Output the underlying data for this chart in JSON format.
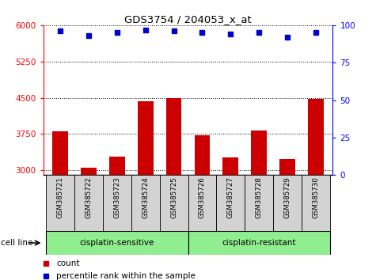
{
  "title": "GDS3754 / 204053_x_at",
  "samples": [
    "GSM385721",
    "GSM385722",
    "GSM385723",
    "GSM385724",
    "GSM385725",
    "GSM385726",
    "GSM385727",
    "GSM385728",
    "GSM385729",
    "GSM385730"
  ],
  "counts": [
    3800,
    3050,
    3280,
    4430,
    4500,
    3720,
    3260,
    3820,
    3230,
    4480
  ],
  "percentile_ranks": [
    96,
    93,
    95,
    97,
    96,
    95,
    94,
    95,
    92,
    95
  ],
  "bar_color": "#cc0000",
  "dot_color": "#0000cc",
  "ylim_left": [
    2900,
    6000
  ],
  "ylim_right": [
    0,
    100
  ],
  "yticks_left": [
    3000,
    3750,
    4500,
    5250,
    6000
  ],
  "yticks_right": [
    0,
    25,
    50,
    75,
    100
  ],
  "group1_label": "cisplatin-sensitive",
  "group1_samples": 5,
  "group2_label": "cisplatin-resistant",
  "group2_samples": 5,
  "cell_line_label": "cell line",
  "legend_count_label": "count",
  "legend_percentile_label": "percentile rank within the sample",
  "group_bg_color": "#90EE90",
  "tick_bg_color": "#d3d3d3",
  "bar_bottom": 2900,
  "bar_width": 0.55
}
